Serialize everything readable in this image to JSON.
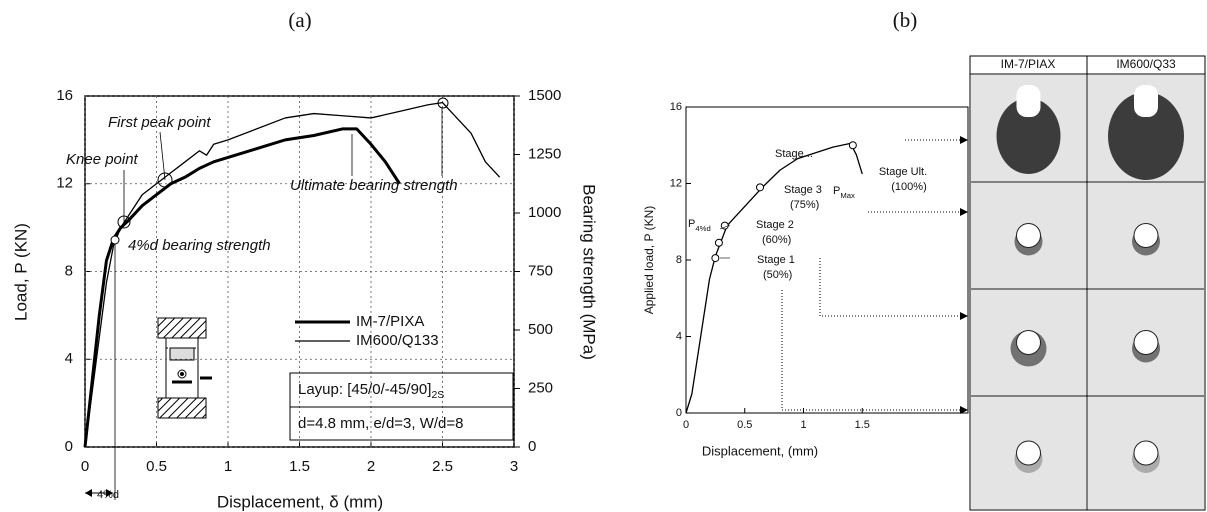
{
  "chart_data": [
    {
      "type": "line",
      "panel_label": "(a)",
      "x_label": "Displacement, δ (mm)",
      "y_label": "Load, P (KN)",
      "y2_label": "Bearing strength (MPa)",
      "xlim": [
        0,
        3
      ],
      "xticks": [
        0,
        0.5,
        1,
        1.5,
        2,
        2.5,
        3
      ],
      "ylim": [
        0,
        16
      ],
      "yticks": [
        0,
        4,
        8,
        12,
        16
      ],
      "y2lim": [
        0,
        1500
      ],
      "y2ticks": [
        0,
        250,
        500,
        750,
        1000,
        1250,
        1500
      ],
      "grid": true,
      "series": [
        {
          "name": "IM-7/PIXA",
          "color": "#000000",
          "x": [
            0,
            0.05,
            0.1,
            0.15,
            0.2,
            0.25,
            0.3,
            0.4,
            0.5,
            0.6,
            0.7,
            0.8,
            0.9,
            1.0,
            1.2,
            1.4,
            1.6,
            1.8,
            1.9,
            2.0,
            2.1,
            2.2
          ],
          "values": [
            0,
            3,
            6,
            8.5,
            9.5,
            10,
            10.3,
            11,
            11.5,
            12,
            12.3,
            12.7,
            13,
            13.2,
            13.6,
            14,
            14.2,
            14.5,
            14.5,
            13.8,
            13,
            12
          ]
        },
        {
          "name": "IM600/Q133",
          "color": "#000000",
          "x": [
            0,
            0.05,
            0.1,
            0.15,
            0.2,
            0.25,
            0.3,
            0.4,
            0.5,
            0.6,
            0.7,
            0.8,
            0.85,
            0.9,
            1.0,
            1.2,
            1.4,
            1.6,
            1.8,
            2.0,
            2.2,
            2.4,
            2.5,
            2.6,
            2.7,
            2.8,
            2.9
          ],
          "values": [
            0,
            2.5,
            5,
            7.5,
            9.2,
            10,
            10.5,
            11.5,
            12,
            12.5,
            13,
            13.5,
            13.3,
            13.8,
            14,
            14.5,
            15,
            15.2,
            15.1,
            15,
            15.3,
            15.6,
            15.7,
            15,
            14.3,
            13,
            12.3
          ]
        }
      ],
      "annotations": [
        {
          "text": "First peak point"
        },
        {
          "text": "Knee point"
        },
        {
          "text": "4%d bearing strength"
        },
        {
          "text": "Ultimate bearing strength"
        },
        {
          "text": "4%d"
        },
        {
          "text": "Layup: [45/0/-45/90]",
          "sub": "2S"
        },
        {
          "text": "d=4.8 mm, e/d=3, W/d=8"
        }
      ]
    },
    {
      "type": "line",
      "panel_label": "(b)",
      "x_label": "Displacement, (mm)",
      "y_label": "Applied load, P (KN)",
      "xlim": [
        0,
        2.4
      ],
      "xticks": [
        0,
        0.5,
        1,
        1.5
      ],
      "ylim": [
        0,
        16
      ],
      "yticks": [
        0,
        4,
        8,
        12,
        16
      ],
      "grid": false,
      "series": [
        {
          "color": "#000000",
          "x": [
            0,
            0.05,
            0.1,
            0.15,
            0.2,
            0.25,
            0.3,
            0.35,
            0.5,
            0.65,
            0.8,
            0.95,
            1.1,
            1.25,
            1.4,
            1.45,
            1.5
          ],
          "values": [
            0,
            1,
            3,
            5,
            7,
            8.2,
            9,
            9.8,
            10.8,
            11.8,
            12.7,
            13.3,
            13.6,
            13.9,
            14.1,
            13.5,
            12.5
          ]
        }
      ],
      "markers": {
        "x": [
          0.25,
          0.28,
          0.33,
          0.63,
          1.42
        ],
        "values": [
          8.1,
          8.9,
          9.8,
          11.8,
          14.0
        ]
      },
      "annotations": [
        {
          "lines": [
            "Stage Ult.",
            "(100%)"
          ]
        },
        {
          "text": "P",
          "sub": "Max"
        },
        {
          "lines": [
            "Stage..."
          ]
        },
        {
          "lines": [
            "Stage 3",
            "(75%)"
          ]
        },
        {
          "lines": [
            "Stage 2",
            "(60%)"
          ]
        },
        {
          "text": "P",
          "sub": "4%d"
        },
        {
          "lines": [
            "Stage 1",
            "(50%)"
          ]
        }
      ],
      "image_columns": [
        "IM-7/PIAX",
        "IM600/Q33"
      ]
    }
  ]
}
